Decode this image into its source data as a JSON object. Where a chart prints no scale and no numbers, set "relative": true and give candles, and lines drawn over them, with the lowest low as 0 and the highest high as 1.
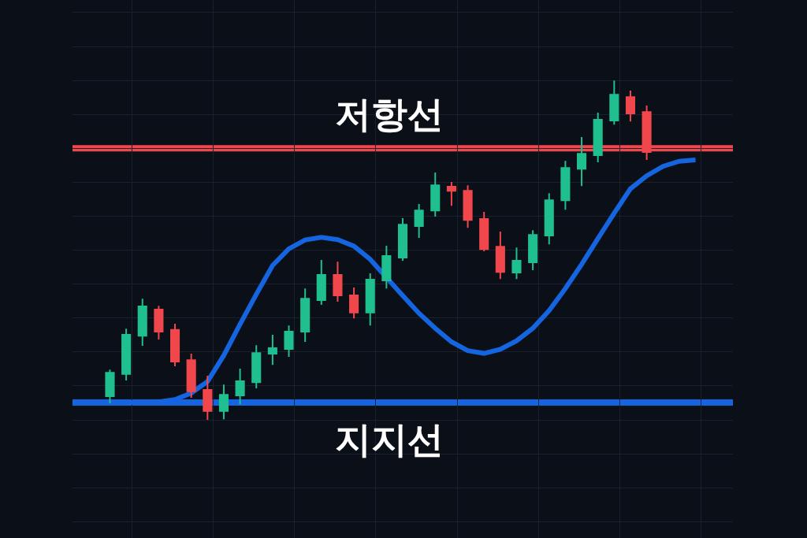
{
  "chart_data": {
    "type": "candlestick",
    "relative": true,
    "categories": [
      null,
      null,
      null,
      null,
      null,
      null,
      null,
      null,
      null,
      null,
      null,
      null,
      null,
      null,
      null,
      null,
      null,
      null,
      null,
      null,
      null,
      null,
      null,
      null,
      null,
      null,
      null,
      null,
      null,
      null,
      null,
      null,
      null,
      null,
      null,
      null,
      null,
      null,
      null
    ],
    "ohlc": [
      null,
      null,
      [
        0.07,
        0.148,
        0.049,
        0.139
      ],
      [
        0.135,
        0.269,
        0.116,
        0.251
      ],
      [
        0.248,
        0.357,
        0.218,
        0.334
      ],
      [
        0.325,
        0.336,
        0.237,
        0.26
      ],
      [
        0.265,
        0.283,
        0.158,
        0.172
      ],
      [
        0.176,
        0.195,
        0.065,
        0.084
      ],
      [
        0.088,
        0.13,
        0.0,
        0.026
      ],
      [
        0.026,
        0.104,
        0.002,
        0.074
      ],
      [
        0.072,
        0.151,
        0.046,
        0.114
      ],
      [
        0.111,
        0.22,
        0.093,
        0.197
      ],
      [
        0.195,
        0.251,
        0.162,
        0.211
      ],
      [
        0.209,
        0.278,
        0.186,
        0.26
      ],
      [
        0.26,
        0.387,
        0.23,
        0.357
      ],
      [
        0.353,
        0.471,
        0.339,
        0.427
      ],
      [
        0.427,
        0.466,
        0.348,
        0.367
      ],
      [
        0.367,
        0.39,
        0.299,
        0.316
      ],
      [
        0.316,
        0.432,
        0.278,
        0.413
      ],
      [
        0.411,
        0.513,
        0.387,
        0.483
      ],
      [
        0.478,
        0.594,
        0.469,
        0.575
      ],
      [
        0.571,
        0.636,
        0.536,
        0.617
      ],
      [
        0.617,
        0.729,
        0.599,
        0.691
      ],
      [
        0.687,
        0.701,
        0.631,
        0.675
      ],
      [
        0.675,
        0.691,
        0.566,
        0.589
      ],
      [
        0.592,
        0.613,
        0.497,
        0.503
      ],
      [
        0.51,
        0.555,
        0.415,
        0.436
      ],
      [
        0.434,
        0.508,
        0.415,
        0.469
      ],
      [
        0.464,
        0.559,
        0.441,
        0.545
      ],
      [
        0.543,
        0.668,
        0.517,
        0.647
      ],
      [
        0.647,
        0.763,
        0.619,
        0.742
      ],
      [
        0.74,
        0.833,
        0.689,
        0.784
      ],
      [
        0.78,
        0.905,
        0.759,
        0.884
      ],
      [
        0.882,
        1.0,
        0.87,
        0.958
      ],
      [
        0.951,
        0.97,
        0.879,
        0.903
      ],
      [
        0.907,
        0.926,
        0.766,
        0.789
      ],
      null,
      null,
      null
    ],
    "colors": [
      null,
      null,
      "#1fbf8f",
      "#1fbf8f",
      "#1fbf8f",
      "#f0474c",
      "#f0474c",
      "#f0474c",
      "#f0474c",
      "#1fbf8f",
      "#1fbf8f",
      "#1fbf8f",
      "#1fbf8f",
      "#1fbf8f",
      "#1fbf8f",
      "#1fbf8f",
      "#f0474c",
      "#f0474c",
      "#1fbf8f",
      "#1fbf8f",
      "#1fbf8f",
      "#1fbf8f",
      "#1fbf8f",
      "#f0474c",
      "#f0474c",
      "#f0474c",
      "#f0474c",
      "#1fbf8f",
      "#1fbf8f",
      "#1fbf8f",
      "#1fbf8f",
      "#1fbf8f",
      "#1fbf8f",
      "#1fbf8f",
      "#f0474c",
      "#f0474c",
      null,
      null,
      null
    ],
    "series": [
      {
        "type": "line",
        "color": "#1565e0",
        "values": [
          0.051,
          0.051,
          0.051,
          0.051,
          0.052,
          0.053,
          0.06,
          0.079,
          0.113,
          0.19,
          0.282,
          0.37,
          0.455,
          0.504,
          0.53,
          0.538,
          0.531,
          0.512,
          0.473,
          null,
          0.366,
          0.314,
          0.27,
          0.23,
          0.204,
          0.196,
          0.208,
          0.233,
          0.27,
          0.322,
          0.387,
          0.458,
          0.534,
          0.609,
          0.681,
          0.719,
          0.747,
          0.762,
          0.766
        ]
      }
    ],
    "ref_lines": [
      {
        "axis": "y",
        "value": 0.8,
        "label": "저항선",
        "color": "#f0474c"
      },
      {
        "axis": "y",
        "value": 0.051,
        "label": "지지선",
        "color": "#1565e0"
      }
    ],
    "grid": true
  }
}
